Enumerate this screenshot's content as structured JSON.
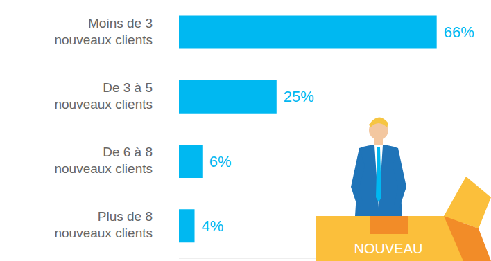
{
  "chart_data": {
    "type": "bar",
    "orientation": "horizontal",
    "categories": [
      "Moins de 3 nouveaux clients",
      "De 3 à 5 nouveaux clients",
      "De 6 à 8 nouveaux clients",
      "Plus de 8 nouveaux clients"
    ],
    "values": [
      66,
      25,
      6,
      4
    ],
    "value_labels": [
      "66%",
      "25%",
      "6%",
      "4%"
    ],
    "color": "#00b8f1",
    "xlim": [
      0,
      76
    ],
    "data_labels": true,
    "tick_labels": "y",
    "grid": false
  },
  "illustration": {
    "label": "NOUVEAU"
  }
}
